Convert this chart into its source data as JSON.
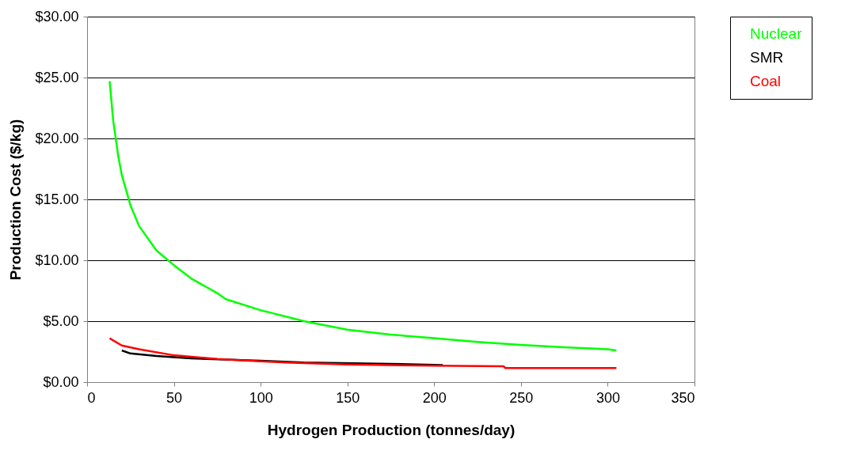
{
  "chart_data": {
    "type": "line",
    "xlabel": "Hydrogen Production (tonnes/day)",
    "ylabel": "Production Cost ($/kg)",
    "xlim": [
      0,
      350
    ],
    "xticks": [
      0,
      50,
      100,
      150,
      200,
      250,
      300,
      350
    ],
    "ylim": [
      0,
      30
    ],
    "yticks": [
      {
        "value": 0,
        "label": "$0.00"
      },
      {
        "value": 5,
        "label": "$5.00"
      },
      {
        "value": 10,
        "label": "$10.00"
      },
      {
        "value": 15,
        "label": "$15.00"
      },
      {
        "value": 20,
        "label": "$20.00"
      },
      {
        "value": 25,
        "label": "$25.00"
      },
      {
        "value": 30,
        "label": "$30.00"
      }
    ],
    "grid": "y",
    "legend": "right",
    "line_style": "solid",
    "marker": "none",
    "series": [
      {
        "name": "Nuclear",
        "color": "#00ff00",
        "x": [
          13,
          15,
          18,
          20,
          25,
          30,
          40,
          50,
          60,
          75,
          80,
          100,
          125,
          150,
          175,
          200,
          225,
          250,
          275,
          300,
          305
        ],
        "values": [
          24.7,
          21.5,
          18.5,
          17,
          14.5,
          12.8,
          10.8,
          9.6,
          8.5,
          7.3,
          6.8,
          5.9,
          5.0,
          4.3,
          3.9,
          3.6,
          3.3,
          3.05,
          2.85,
          2.7,
          2.6
        ]
      },
      {
        "name": "SMR",
        "color": "#000000",
        "x": [
          20,
          25,
          40,
          60,
          100,
          125,
          175,
          205
        ],
        "values": [
          2.6,
          2.35,
          2.15,
          1.95,
          1.75,
          1.6,
          1.5,
          1.4
        ]
      },
      {
        "name": "Coal",
        "color": "#ff0000",
        "x": [
          13,
          20,
          30,
          50,
          75,
          100,
          115,
          150,
          200,
          240,
          241,
          305
        ],
        "values": [
          3.6,
          3.0,
          2.7,
          2.2,
          1.9,
          1.7,
          1.6,
          1.45,
          1.35,
          1.3,
          1.15,
          1.15
        ]
      }
    ]
  }
}
